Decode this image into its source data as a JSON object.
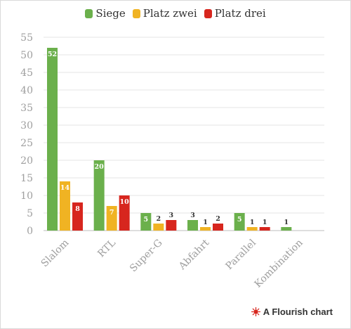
{
  "chart_data": {
    "type": "bar",
    "categories": [
      "Slalom",
      "RTL",
      "Super-G",
      "Abfahrt",
      "Parallel",
      "Kombination"
    ],
    "series": [
      {
        "name": "Siege",
        "color": "#6bb04c",
        "values": [
          52,
          20,
          5,
          3,
          5,
          1
        ]
      },
      {
        "name": "Platz zwei",
        "color": "#f0b323",
        "values": [
          14,
          7,
          2,
          1,
          1,
          null
        ]
      },
      {
        "name": "Platz drei",
        "color": "#d7261e",
        "values": [
          8,
          10,
          3,
          2,
          1,
          null
        ]
      }
    ],
    "ylim": [
      0,
      55
    ],
    "yticks": [
      0,
      5,
      10,
      15,
      20,
      25,
      30,
      35,
      40,
      45,
      50,
      55
    ],
    "grid": true,
    "legend_position": "top-center"
  },
  "footer": {
    "credit": "A Flourish chart",
    "icon": "flourish-logo-icon"
  }
}
